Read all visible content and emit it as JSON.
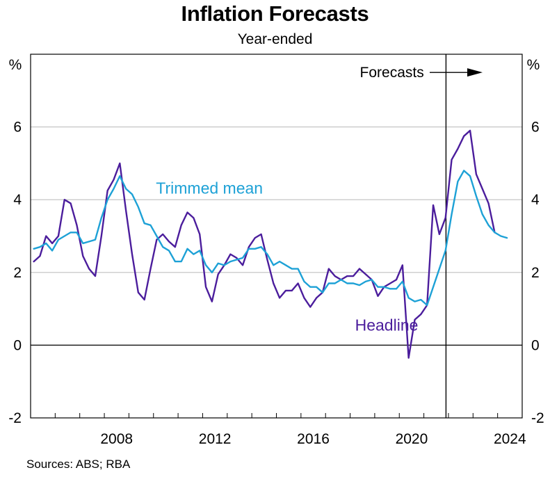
{
  "title": "Inflation Forecasts",
  "subtitle": "Year-ended",
  "source": "Sources: ABS; RBA",
  "colors": {
    "headline": "#4B1D9C",
    "trimmed_mean": "#1DA1D6",
    "grid": "#BFBFBF",
    "axis": "#000000"
  },
  "chart_data": {
    "type": "line",
    "title": "Inflation Forecasts",
    "subtitle": "Year-ended",
    "yunit_left": "%",
    "yunit_right": "%",
    "ylim": [
      -2,
      8
    ],
    "yticks": [
      -2,
      0,
      2,
      4,
      6
    ],
    "xlim": [
      2005.0,
      2025.0
    ],
    "xticks": [
      2008,
      2012,
      2016,
      2020,
      2024
    ],
    "grid": true,
    "forecast_start": 2021.9,
    "annotations": [
      {
        "text": "Forecasts",
        "x": 2019.7,
        "y": 7.5
      },
      {
        "text": "Trimmed mean",
        "x": 2010.1,
        "y": 4.3
      },
      {
        "text": "Headline",
        "x": 2018.2,
        "y": 0.55
      }
    ],
    "series": [
      {
        "name": "Headline",
        "x": [
          2005.13,
          2005.38,
          2005.63,
          2005.88,
          2006.13,
          2006.38,
          2006.63,
          2006.88,
          2007.13,
          2007.38,
          2007.63,
          2007.88,
          2008.13,
          2008.38,
          2008.63,
          2008.88,
          2009.13,
          2009.38,
          2009.63,
          2009.88,
          2010.13,
          2010.38,
          2010.63,
          2010.88,
          2011.13,
          2011.38,
          2011.63,
          2011.88,
          2012.13,
          2012.38,
          2012.63,
          2012.88,
          2013.13,
          2013.38,
          2013.63,
          2013.88,
          2014.13,
          2014.38,
          2014.63,
          2014.88,
          2015.13,
          2015.38,
          2015.63,
          2015.88,
          2016.13,
          2016.38,
          2016.63,
          2016.88,
          2017.13,
          2017.38,
          2017.63,
          2017.88,
          2018.13,
          2018.38,
          2018.63,
          2018.88,
          2019.13,
          2019.38,
          2019.63,
          2019.88,
          2020.13,
          2020.38,
          2020.63,
          2020.88,
          2021.13,
          2021.38,
          2021.63,
          2021.88,
          2022.13,
          2022.38,
          2022.63,
          2022.88,
          2023.13,
          2023.38,
          2023.63,
          2023.88,
          2024.13,
          2024.38
        ],
        "y": [
          2.3,
          2.45,
          3.0,
          2.8,
          3.0,
          4.0,
          3.9,
          3.3,
          2.45,
          2.1,
          1.9,
          3.0,
          4.25,
          4.55,
          5.0,
          3.7,
          2.5,
          1.45,
          1.25,
          2.1,
          2.9,
          3.05,
          2.85,
          2.7,
          3.3,
          3.65,
          3.5,
          3.05,
          1.6,
          1.2,
          1.95,
          2.2,
          2.5,
          2.4,
          2.2,
          2.7,
          2.95,
          3.05,
          2.35,
          1.7,
          1.3,
          1.5,
          1.5,
          1.7,
          1.3,
          1.05,
          1.3,
          1.45,
          2.1,
          1.9,
          1.8,
          1.9,
          1.9,
          2.1,
          1.95,
          1.8,
          1.35,
          1.6,
          1.7,
          1.8,
          2.2,
          -0.35,
          0.7,
          0.85,
          1.1,
          3.85,
          3.05,
          3.5,
          5.1,
          5.4,
          5.75,
          5.9,
          4.7,
          4.3,
          3.9,
          3.1,
          null,
          null
        ]
      },
      {
        "name": "Trimmed mean",
        "x": [
          2005.13,
          2005.38,
          2005.63,
          2005.88,
          2006.13,
          2006.38,
          2006.63,
          2006.88,
          2007.13,
          2007.38,
          2007.63,
          2007.88,
          2008.13,
          2008.38,
          2008.63,
          2008.88,
          2009.13,
          2009.38,
          2009.63,
          2009.88,
          2010.13,
          2010.38,
          2010.63,
          2010.88,
          2011.13,
          2011.38,
          2011.63,
          2011.88,
          2012.13,
          2012.38,
          2012.63,
          2012.88,
          2013.13,
          2013.38,
          2013.63,
          2013.88,
          2014.13,
          2014.38,
          2014.63,
          2014.88,
          2015.13,
          2015.38,
          2015.63,
          2015.88,
          2016.13,
          2016.38,
          2016.63,
          2016.88,
          2017.13,
          2017.38,
          2017.63,
          2017.88,
          2018.13,
          2018.38,
          2018.63,
          2018.88,
          2019.13,
          2019.38,
          2019.63,
          2019.88,
          2020.13,
          2020.38,
          2020.63,
          2020.88,
          2021.13,
          2021.38,
          2021.63,
          2021.88,
          2022.13,
          2022.38,
          2022.63,
          2022.88,
          2023.13,
          2023.38,
          2023.63,
          2023.88,
          2024.13,
          2024.38
        ],
        "y": [
          2.65,
          2.7,
          2.8,
          2.6,
          2.9,
          3.0,
          3.1,
          3.1,
          2.8,
          2.85,
          2.9,
          3.5,
          4.0,
          4.3,
          4.65,
          4.3,
          4.15,
          3.8,
          3.35,
          3.3,
          3.0,
          2.7,
          2.6,
          2.3,
          2.3,
          2.65,
          2.5,
          2.6,
          2.2,
          2.0,
          2.25,
          2.2,
          2.3,
          2.35,
          2.4,
          2.65,
          2.65,
          2.7,
          2.5,
          2.2,
          2.3,
          2.2,
          2.1,
          2.1,
          1.75,
          1.6,
          1.6,
          1.45,
          1.7,
          1.7,
          1.8,
          1.7,
          1.7,
          1.65,
          1.75,
          1.8,
          1.6,
          1.6,
          1.55,
          1.55,
          1.75,
          1.3,
          1.2,
          1.25,
          1.1,
          1.6,
          2.1,
          2.6,
          3.6,
          4.5,
          4.8,
          4.65,
          4.1,
          3.6,
          3.3,
          3.1,
          3.0,
          2.95
        ]
      }
    ]
  }
}
